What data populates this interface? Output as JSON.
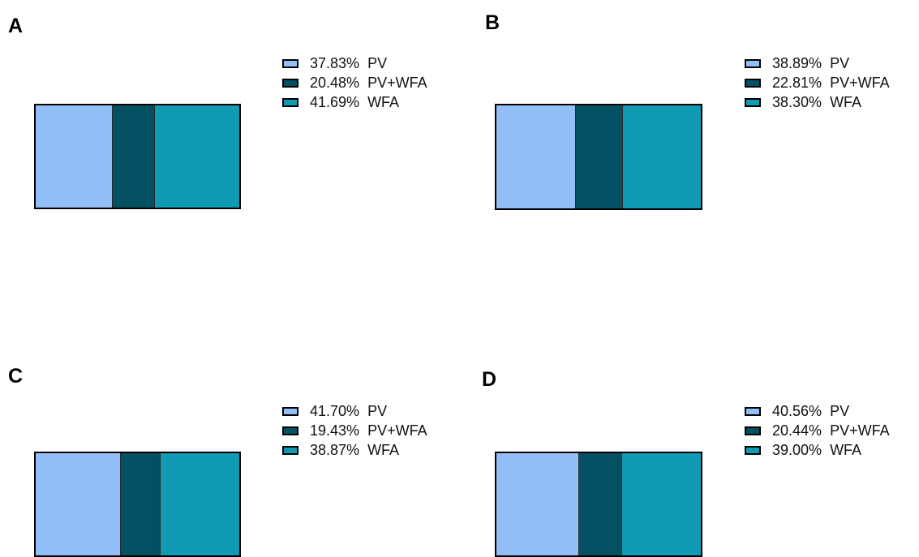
{
  "colors": {
    "PV": "#92BFF8",
    "PV+WFA": "#045063",
    "WFA": "#109AB3"
  },
  "chart_data": [
    {
      "type": "bar",
      "panel": "A",
      "stacked": true,
      "orientation": "horizontal",
      "series": [
        {
          "name": "PV",
          "value": 37.83,
          "label": "37.83%"
        },
        {
          "name": "PV+WFA",
          "value": 20.48,
          "label": "20.48%"
        },
        {
          "name": "WFA",
          "value": 41.69,
          "label": "41.69%"
        }
      ],
      "legend_position": "top-right"
    },
    {
      "type": "bar",
      "panel": "B",
      "stacked": true,
      "orientation": "horizontal",
      "series": [
        {
          "name": "PV",
          "value": 38.89,
          "label": "38.89%"
        },
        {
          "name": "PV+WFA",
          "value": 22.81,
          "label": "22.81%"
        },
        {
          "name": "WFA",
          "value": 38.3,
          "label": "38.30%"
        }
      ],
      "legend_position": "top-right"
    },
    {
      "type": "bar",
      "panel": "C",
      "stacked": true,
      "orientation": "horizontal",
      "series": [
        {
          "name": "PV",
          "value": 41.7,
          "label": "41.70%"
        },
        {
          "name": "PV+WFA",
          "value": 19.43,
          "label": "19.43%"
        },
        {
          "name": "WFA",
          "value": 38.87,
          "label": "38.87%"
        }
      ],
      "legend_position": "top-right"
    },
    {
      "type": "bar",
      "panel": "D",
      "stacked": true,
      "orientation": "horizontal",
      "series": [
        {
          "name": "PV",
          "value": 40.56,
          "label": "40.56%"
        },
        {
          "name": "PV+WFA",
          "value": 20.44,
          "label": "20.44%"
        },
        {
          "name": "WFA",
          "value": 39.0,
          "label": "39.00%"
        }
      ],
      "legend_position": "top-right"
    }
  ]
}
